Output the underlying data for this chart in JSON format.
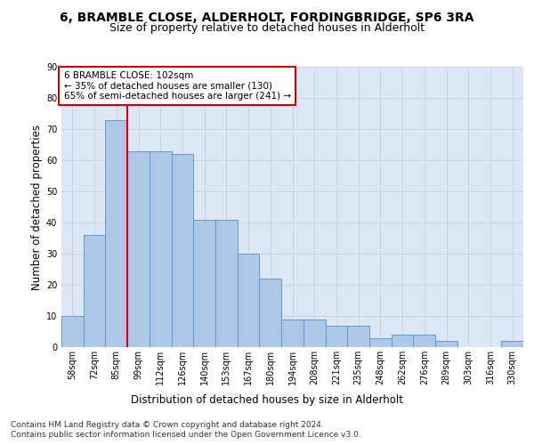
{
  "title_line1": "6, BRAMBLE CLOSE, ALDERHOLT, FORDINGBRIDGE, SP6 3RA",
  "title_line2": "Size of property relative to detached houses in Alderholt",
  "xlabel": "Distribution of detached houses by size in Alderholt",
  "ylabel": "Number of detached properties",
  "categories": [
    "58sqm",
    "72sqm",
    "85sqm",
    "99sqm",
    "112sqm",
    "126sqm",
    "140sqm",
    "153sqm",
    "167sqm",
    "180sqm",
    "194sqm",
    "208sqm",
    "221sqm",
    "235sqm",
    "248sqm",
    "262sqm",
    "276sqm",
    "289sqm",
    "303sqm",
    "316sqm",
    "330sqm"
  ],
  "values": [
    10,
    36,
    73,
    63,
    63,
    62,
    41,
    41,
    30,
    22,
    9,
    9,
    7,
    7,
    3,
    4,
    4,
    2,
    0,
    0,
    2
  ],
  "bar_color": "#aec6e8",
  "bar_edge_color": "#5b9bd5",
  "annotation_text_line1": "6 BRAMBLE CLOSE: 102sqm",
  "annotation_text_line2": "← 35% of detached houses are smaller (130)",
  "annotation_text_line3": "65% of semi-detached houses are larger (241) →",
  "annotation_box_color": "#ffffff",
  "annotation_box_edge_color": "#cc0000",
  "red_line_x": 2.5,
  "ylim": [
    0,
    90
  ],
  "yticks": [
    0,
    10,
    20,
    30,
    40,
    50,
    60,
    70,
    80,
    90
  ],
  "grid_color": "#c8d4e8",
  "footnote_line1": "Contains HM Land Registry data © Crown copyright and database right 2024.",
  "footnote_line2": "Contains public sector information licensed under the Open Government Licence v3.0.",
  "background_color": "#dce6f5",
  "fig_background_color": "#ffffff",
  "title_fontsize": 10,
  "subtitle_fontsize": 9,
  "tick_fontsize": 7,
  "label_fontsize": 8.5,
  "annotation_fontsize": 7.5,
  "footnote_fontsize": 6.5
}
